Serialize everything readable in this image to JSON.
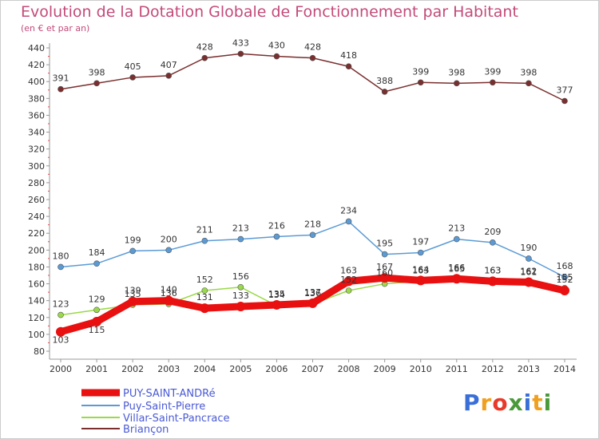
{
  "title": "Evolution de la Dotation Globale de Fonctionnement par Habitant",
  "subtitle": "(en € et par an)",
  "logo": {
    "text": "Proxiti",
    "letters": [
      {
        "ch": "P",
        "color": "#3a6fd8"
      },
      {
        "ch": "r",
        "color": "#f0a020"
      },
      {
        "ch": "o",
        "color": "#e83a2a"
      },
      {
        "ch": "x",
        "color": "#4a9a3a"
      },
      {
        "ch": "i",
        "color": "#3a6fd8"
      },
      {
        "ch": "t",
        "color": "#f0a020"
      },
      {
        "ch": "i",
        "color": "#4a9a3a"
      }
    ]
  },
  "chart_data": {
    "type": "line",
    "title": "Evolution de la Dotation Globale de Fonctionnement par Habitant",
    "subtitle": "(en € et par an)",
    "x": [
      "2000",
      "2001",
      "2002",
      "2003",
      "2004",
      "2005",
      "2006",
      "2007",
      "2008",
      "2009",
      "2010",
      "2011",
      "2012",
      "2013",
      "2014"
    ],
    "ylim": [
      80,
      440
    ],
    "yticks": [
      80,
      100,
      120,
      140,
      160,
      180,
      200,
      220,
      240,
      260,
      280,
      300,
      320,
      340,
      360,
      380,
      400,
      420,
      440
    ],
    "grid": false,
    "legend_placement": "bottom-left",
    "series": [
      {
        "name": "PUY-SAINT-ANDRé",
        "color": "#e81010",
        "width": 9,
        "values": [
          103,
          115,
          139,
          140,
          131,
          133,
          135,
          137,
          163,
          167,
          164,
          166,
          163,
          162,
          152
        ],
        "labels": [
          "103",
          "115",
          "139",
          "140",
          "131",
          "133",
          "135",
          "137",
          "163",
          "167",
          "164",
          "166",
          "163",
          "162",
          "152"
        ]
      },
      {
        "name": "Puy-Saint-Pierre",
        "color": "#5b9bd5",
        "width": 1.5,
        "values": [
          180,
          184,
          199,
          200,
          211,
          213,
          216,
          218,
          234,
          195,
          197,
          213,
          209,
          190,
          168
        ],
        "labels": [
          "180",
          "184",
          "199",
          "200",
          "211",
          "213",
          "216",
          "218",
          "234",
          "195",
          "197",
          "213",
          "209",
          "190",
          "168"
        ]
      },
      {
        "name": "Villar-Saint-Pancrace",
        "color": "#9ad94a",
        "width": 1.5,
        "values": [
          123,
          129,
          135,
          136,
          152,
          156,
          134,
          136,
          152,
          160,
          163,
          165,
          163,
          161,
          155
        ],
        "labels": [
          "123",
          "129",
          "135",
          "136",
          "152",
          "156",
          "134",
          "136",
          "152",
          "160",
          "163",
          "165",
          "163",
          "161",
          "155"
        ]
      },
      {
        "name": "Briançon",
        "color": "#7a2e2e",
        "width": 1.5,
        "values": [
          391,
          398,
          405,
          407,
          428,
          433,
          430,
          428,
          418,
          388,
          399,
          398,
          399,
          398,
          377
        ],
        "labels": [
          "391",
          "398",
          "405",
          "407",
          "428",
          "433",
          "430",
          "428",
          "418",
          "388",
          "399",
          "398",
          "399",
          "398",
          "377"
        ]
      }
    ]
  }
}
